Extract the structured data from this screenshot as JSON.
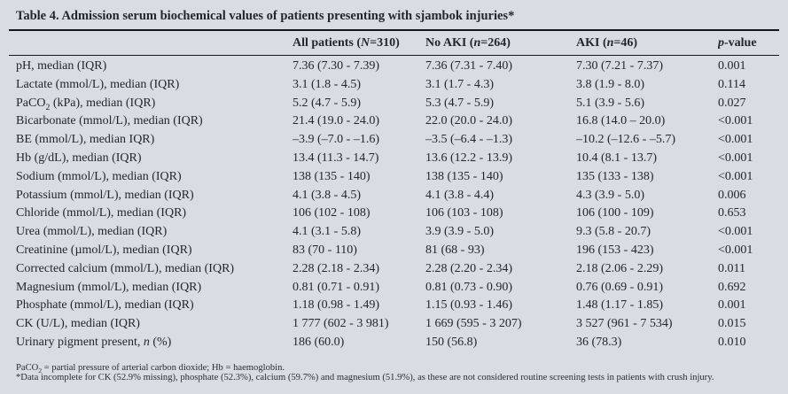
{
  "table": {
    "title": "Table 4. Admission serum biochemical values of patients presenting with sjambok injuries*",
    "columns": [
      {
        "label_html": ""
      },
      {
        "label_html": "All patients (<i>N</i>=310)"
      },
      {
        "label_html": "No AKI (<i>n</i>=264)"
      },
      {
        "label_html": "AKI (<i>n</i>=46)"
      },
      {
        "label_html": "<i>p</i>-value"
      }
    ],
    "rows": [
      {
        "label_html": "pH, median (IQR)",
        "all_patients": "7.36 (7.30 - 7.39)",
        "no_aki": "7.36 (7.31 - 7.40)",
        "aki": "7.30 (7.21 - 7.37)",
        "p_value": "0.001"
      },
      {
        "label_html": "Lactate (mmol/L), median (IQR)",
        "all_patients": "3.1 (1.8 - 4.5)",
        "no_aki": "3.1 (1.7 - 4.3)",
        "aki": "3.8 (1.9 - 8.0)",
        "p_value": "0.114"
      },
      {
        "label_html": "PaCO<sub>2</sub> (kPa), median (IQR)",
        "all_patients": "5.2 (4.7 - 5.9)",
        "no_aki": "5.3 (4.7 - 5.9)",
        "aki": "5.1 (3.9 - 5.6)",
        "p_value": "0.027"
      },
      {
        "label_html": "Bicarbonate (mmol/L), median (IQR)",
        "all_patients": "21.4 (19.0 - 24.0)",
        "no_aki": "22.0 (20.0 - 24.0)",
        "aki": "16.8 (14.0 – 20.0)",
        "p_value": "<0.001"
      },
      {
        "label_html": "BE (mmol/L), median IQR)",
        "all_patients": "–3.9 (–7.0 - –1.6)",
        "no_aki": "–3.5 (–6.4 - –1.3)",
        "aki": "–10.2 (–12.6 - –5.7)",
        "p_value": "<0.001"
      },
      {
        "label_html": "Hb (g/dL), median (IQR)",
        "all_patients": "13.4 (11.3 - 14.7)",
        "no_aki": "13.6 (12.2 - 13.9)",
        "aki": "10.4 (8.1 - 13.7)",
        "p_value": "<0.001"
      },
      {
        "label_html": "Sodium (mmol/L), median (IQR)",
        "all_patients": "138 (135 - 140)",
        "no_aki": "138 (135 - 140)",
        "aki": "135 (133 - 138)",
        "p_value": "<0.001"
      },
      {
        "label_html": "Potassium (mmol/L), median (IQR)",
        "all_patients": "4.1 (3.8 - 4.5)",
        "no_aki": "4.1 (3.8 - 4.4)",
        "aki": "4.3 (3.9 - 5.0)",
        "p_value": "0.006"
      },
      {
        "label_html": "Chloride (mmol/L), median (IQR)",
        "all_patients": "106 (102 - 108)",
        "no_aki": "106 (103 - 108)",
        "aki": "106 (100 - 109)",
        "p_value": "0.653"
      },
      {
        "label_html": "Urea (mmol/L), median (IQR)",
        "all_patients": "4.1 (3.1 - 5.8)",
        "no_aki": "3.9 (3.9 - 5.0)",
        "aki": "9.3 (5.8 - 20.7)",
        "p_value": "<0.001"
      },
      {
        "label_html": "Creatinine (µmol/L), median (IQR)",
        "all_patients": "83 (70 - 110)",
        "no_aki": "81 (68 - 93)",
        "aki": "196 (153 - 423)",
        "p_value": "<0.001"
      },
      {
        "label_html": "Corrected calcium (mmol/L), median (IQR)",
        "all_patients": "2.28 (2.18 - 2.34)",
        "no_aki": "2.28 (2.20 - 2.34)",
        "aki": "2.18 (2.06 - 2.29)",
        "p_value": "0.011"
      },
      {
        "label_html": "Magnesium (mmol/L), median (IQR)",
        "all_patients": "0.81 (0.71 - 0.91)",
        "no_aki": "0.81 (0.73 - 0.90)",
        "aki": "0.76 (0.69 - 0.91)",
        "p_value": "0.692"
      },
      {
        "label_html": "Phosphate (mmol/L), median (IQR)",
        "all_patients": "1.18 (0.98 - 1.49)",
        "no_aki": "1.15 (0.93 - 1.46)",
        "aki": "1.48 (1.17 - 1.85)",
        "p_value": "0.001"
      },
      {
        "label_html": "CK (U/L), median (IQR)",
        "all_patients": "1 777 (602 - 3 981)",
        "no_aki": "1 669 (595 - 3 207)",
        "aki": "3 527 (961 - 7 534)",
        "p_value": "0.015"
      },
      {
        "label_html": "Urinary pigment present, <i>n</i> (%)",
        "all_patients": "186 (60.0)",
        "no_aki": "150 (56.8)",
        "aki": "36 (78.3)",
        "p_value": "0.010"
      }
    ],
    "footnotes": [
      {
        "text_html": "PaCO<sub>2</sub> = partial pressure of arterial carbon dioxide; Hb = haemoglobin."
      },
      {
        "text_html": "*Data incomplete for CK (52.9% missing), phosphate (52.3%), calcium (59.7%) and magnesium (51.9%), as these are not considered routine screening tests in patients with crush injury."
      }
    ]
  },
  "colors": {
    "page_background": "#d7dde3",
    "text": "#23272d",
    "rule": "#14171c"
  }
}
